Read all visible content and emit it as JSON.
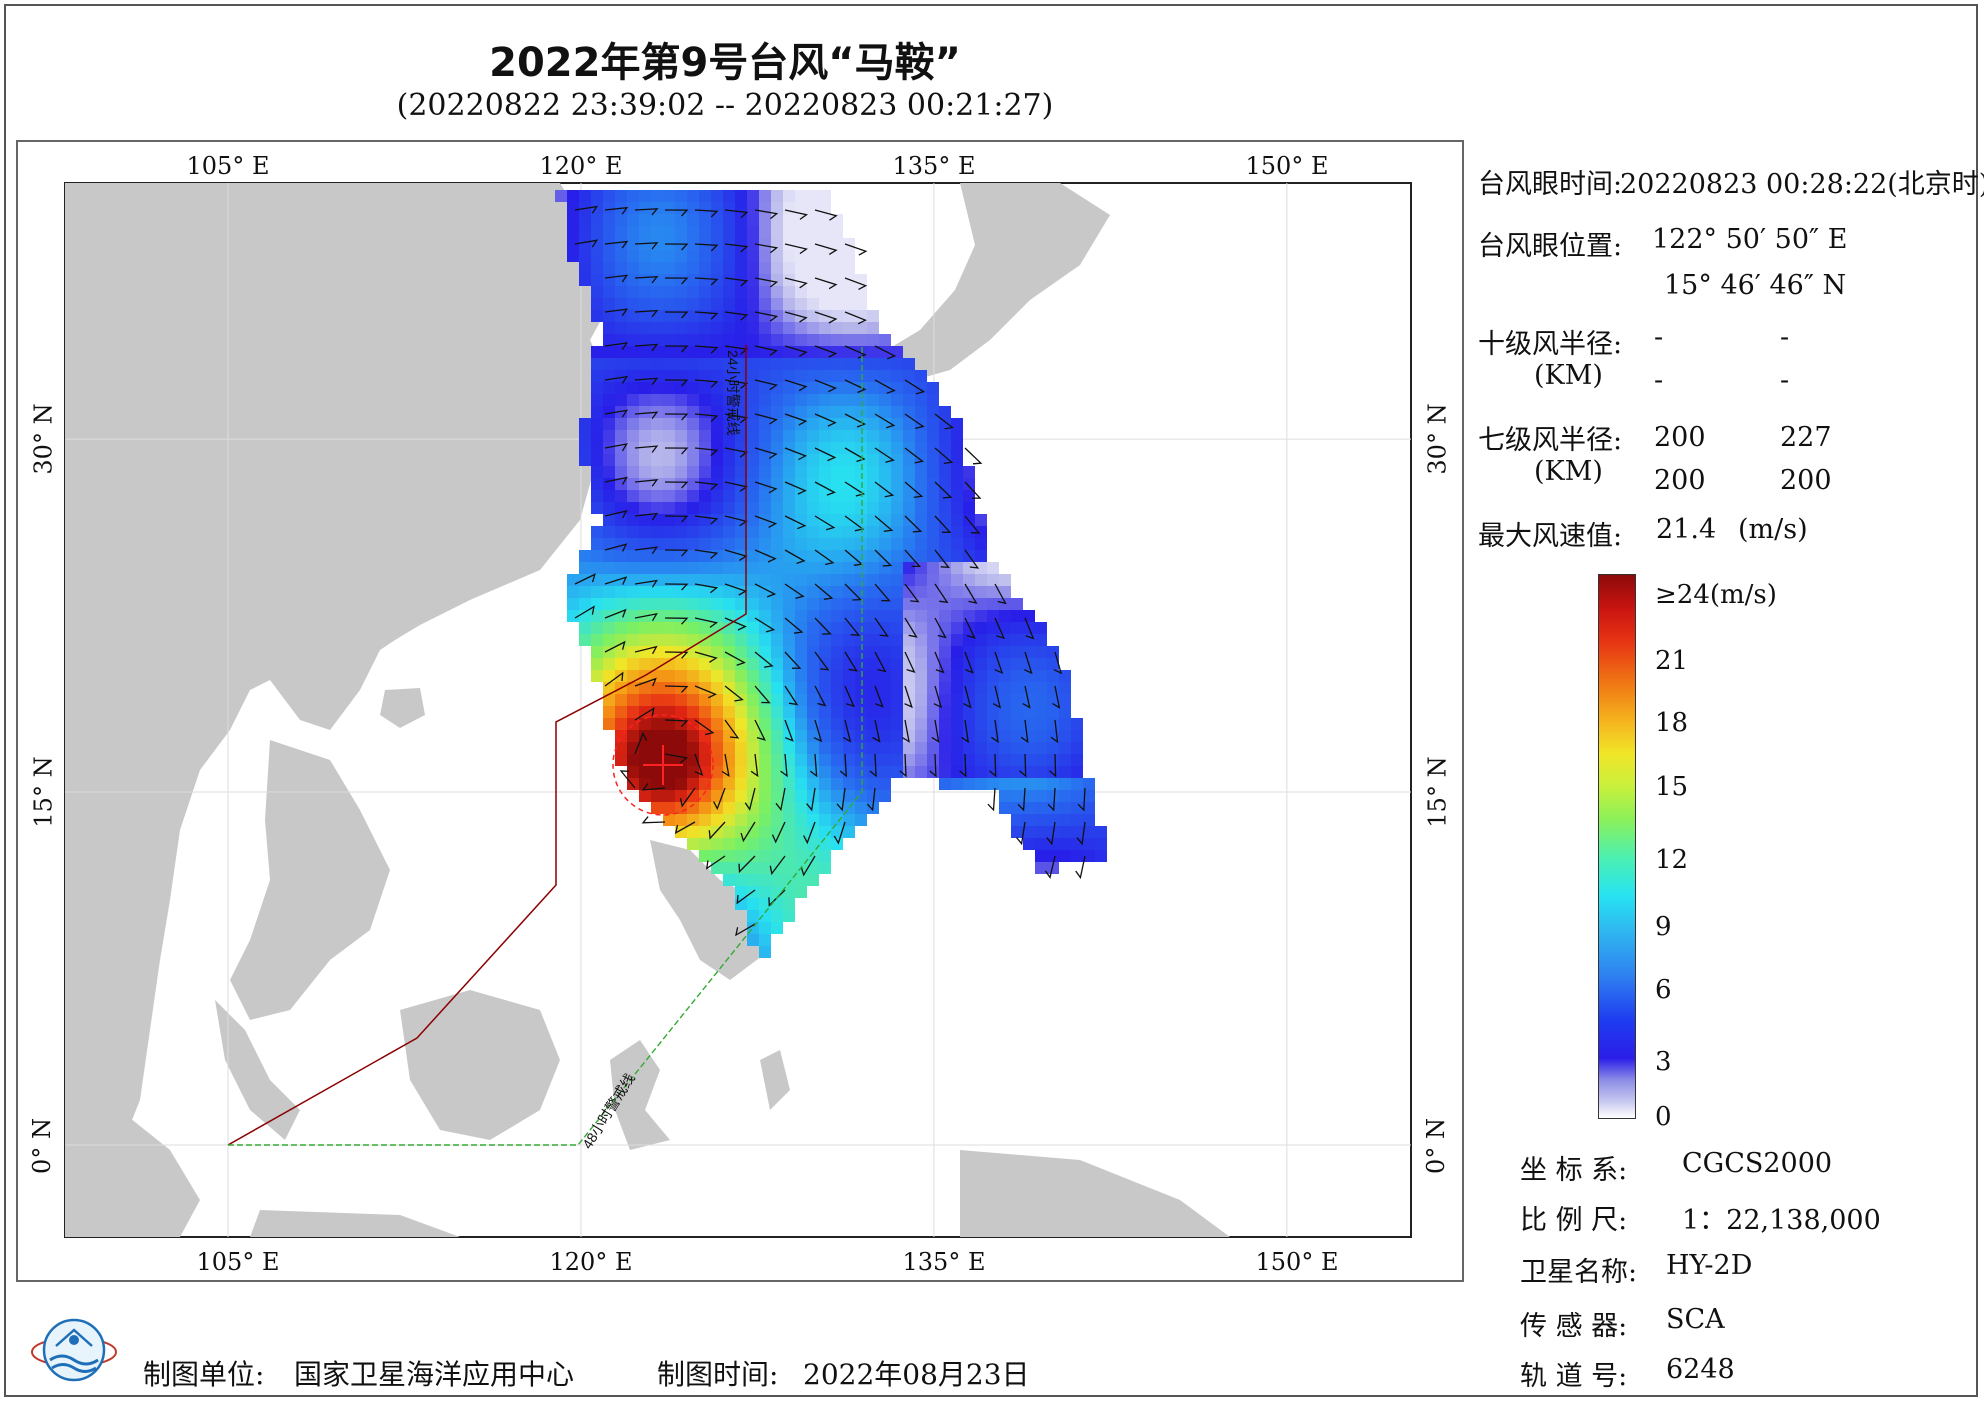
{
  "title": "2022年第9号台风“马鞍”",
  "subtitle": "(20220822 23:39:02 -- 20220823 00:21:27)",
  "map": {
    "lon_labels": [
      "105° E",
      "120° E",
      "135° E",
      "150° E"
    ],
    "lat_labels": [
      "30° N",
      "15° N",
      "0° N"
    ],
    "line_24h": "24小时警戒线",
    "line_48h": "48小时警戒线",
    "colors": {
      "land": "#c8c8c8",
      "sea": "#ffffff",
      "line_24h": "#8b0000",
      "line_48h": "#33aa33",
      "grid": "#dddddd"
    }
  },
  "panel": {
    "eye_time_label": "台风眼时间:",
    "eye_time_value": "20220823 00:28:22(北京时)",
    "eye_pos_label": "台风眼位置:",
    "eye_lon": "122° 50′ 50″ E",
    "eye_lat": "15° 46′ 46″ N",
    "r10_label": "十级风半径:",
    "r10_unit": "(KM)",
    "r10_values": [
      "-",
      "-",
      "-",
      "-"
    ],
    "r7_label": "七级风半径:",
    "r7_unit": "(KM)",
    "r7_values": [
      "200",
      "227",
      "200",
      "200"
    ],
    "max_wind_label": "最大风速值:",
    "max_wind_value": "21.4",
    "max_wind_unit": "(m/s)"
  },
  "colorbar": {
    "labels": [
      "≥24(m/s)",
      "21",
      "18",
      "15",
      "12",
      "9",
      "6",
      "3",
      "0"
    ]
  },
  "meta": {
    "crs_label": "坐 标 系:",
    "crs_value": "CGCS2000",
    "scale_label": "比 例 尺:",
    "scale_value": "1：22,138,000",
    "satellite_label": "卫星名称:",
    "satellite_value": "HY-2D",
    "sensor_label": "传 感 器:",
    "sensor_value": "SCA",
    "orbit_label": "轨 道 号:",
    "orbit_value": "6248"
  },
  "footer": {
    "unit_label": "制图单位:",
    "unit_value": "国家卫星海洋应用中心",
    "time_label": "制图时间:",
    "time_value": "2022年08月23日"
  },
  "logo": {
    "icon": "nsoas-logo-icon"
  }
}
